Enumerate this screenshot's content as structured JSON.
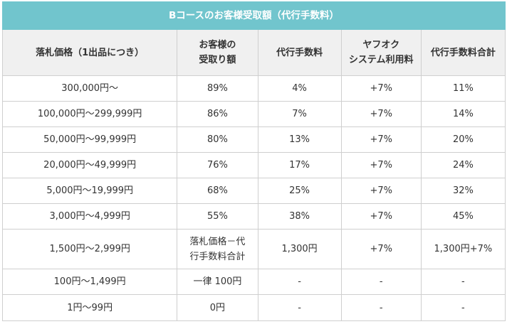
{
  "table": {
    "title": "Bコースのお客様受取額（代行手数料）",
    "headers": [
      [
        "落札価格（1出品につき）"
      ],
      [
        "お客様の",
        "受取り額"
      ],
      [
        "代行手数料"
      ],
      [
        "ヤフオク",
        "システム利用料"
      ],
      [
        "代行手数料合計"
      ]
    ],
    "rows": [
      [
        [
          "300,000円〜"
        ],
        [
          "89%"
        ],
        [
          "4%"
        ],
        [
          "+7%"
        ],
        [
          "11%"
        ]
      ],
      [
        [
          "100,000円〜299,999円"
        ],
        [
          "86%"
        ],
        [
          "7%"
        ],
        [
          "+7%"
        ],
        [
          "14%"
        ]
      ],
      [
        [
          "50,000円〜99,999円"
        ],
        [
          "80%"
        ],
        [
          "13%"
        ],
        [
          "+7%"
        ],
        [
          "20%"
        ]
      ],
      [
        [
          "20,000円〜49,999円"
        ],
        [
          "76%"
        ],
        [
          "17%"
        ],
        [
          "+7%"
        ],
        [
          "24%"
        ]
      ],
      [
        [
          "5,000円〜19,999円"
        ],
        [
          "68%"
        ],
        [
          "25%"
        ],
        [
          "+7%"
        ],
        [
          "32%"
        ]
      ],
      [
        [
          "3,000円〜4,999円"
        ],
        [
          "55%"
        ],
        [
          "38%"
        ],
        [
          "+7%"
        ],
        [
          "45%"
        ]
      ],
      [
        [
          "1,500円〜2,999円"
        ],
        [
          "落札価格－代",
          "行手数料合計"
        ],
        [
          "1,300円"
        ],
        [
          "+7%"
        ],
        [
          "1,300円+7%"
        ]
      ],
      [
        [
          "100円〜1,499円"
        ],
        [
          "一律 100円"
        ],
        [
          "-"
        ],
        [
          "-"
        ],
        [
          "-"
        ]
      ],
      [
        [
          "1円〜99円"
        ],
        [
          "0円"
        ],
        [
          "-"
        ],
        [
          "-"
        ],
        [
          "-"
        ]
      ]
    ]
  },
  "colors": {
    "title_background": "#71c5cd",
    "header_background": "#f0f0f0",
    "border": "#cfcfcf",
    "text": "#333333"
  }
}
